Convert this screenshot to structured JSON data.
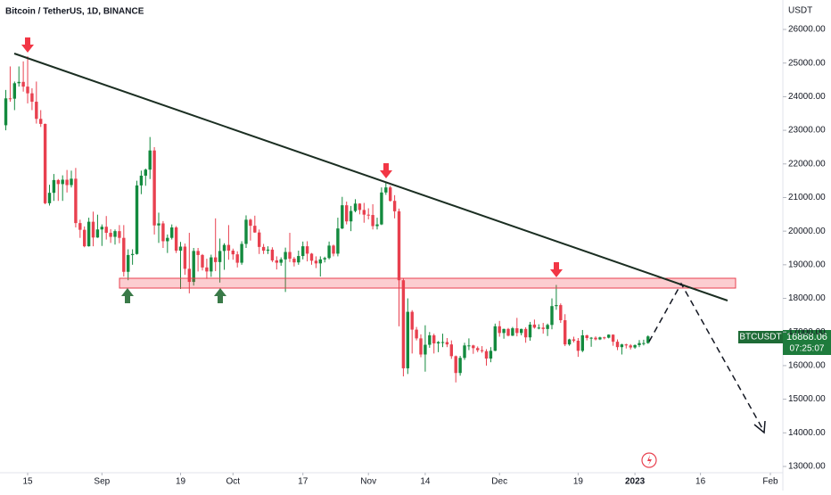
{
  "chart_data": {
    "type": "candlestick",
    "title": "Bitcoin / TetherUS, 1D, BINANCE",
    "y_axis_label": "USDT",
    "symbol": "BTCUSDT",
    "countdown": "07:25:07",
    "up_color": "#138a3e",
    "down_color": "#e8404f",
    "grid": false,
    "xlim": [
      -6.33,
      172.45
    ],
    "xticks": [
      {
        "value": 0,
        "label": "15"
      },
      {
        "value": 17,
        "label": "Sep"
      },
      {
        "value": 35,
        "label": "19"
      },
      {
        "value": 47,
        "label": "Oct"
      },
      {
        "value": 63,
        "label": "17"
      },
      {
        "value": 78,
        "label": "Nov"
      },
      {
        "value": 91,
        "label": "14"
      },
      {
        "value": 108,
        "label": "Dec"
      },
      {
        "value": 126,
        "label": "19"
      },
      {
        "value": 139,
        "label": "2023"
      },
      {
        "value": 154,
        "label": "16"
      },
      {
        "value": 170,
        "label": "Feb"
      }
    ],
    "ylim": [
      12814,
      26876
    ],
    "yticks": [
      {
        "value": 13000,
        "label": "13000.00"
      },
      {
        "value": 14000,
        "label": "14000.00"
      },
      {
        "value": 15000,
        "label": "15000.00"
      },
      {
        "value": 16000,
        "label": "16000.00"
      },
      {
        "value": 17000,
        "label": "17000.00"
      },
      {
        "value": 18000,
        "label": "18000.00"
      },
      {
        "value": 19000,
        "label": "19000.00"
      },
      {
        "value": 20000,
        "label": "20000.00"
      },
      {
        "value": 21000,
        "label": "21000.00"
      },
      {
        "value": 22000,
        "label": "22000.00"
      },
      {
        "value": 23000,
        "label": "23000.00"
      },
      {
        "value": 24000,
        "label": "24000.00"
      },
      {
        "value": 25000,
        "label": "25000.00"
      },
      {
        "value": 26000,
        "label": "26000.00"
      }
    ],
    "x": [
      -5,
      -4,
      -3,
      -2,
      -1,
      0,
      1,
      2,
      3,
      4,
      5,
      6,
      7,
      8,
      9,
      10,
      11,
      12,
      13,
      14,
      15,
      16,
      17,
      18,
      19,
      20,
      21,
      22,
      23,
      24,
      25,
      26,
      27,
      28,
      29,
      30,
      31,
      32,
      33,
      34,
      35,
      36,
      37,
      38,
      39,
      40,
      41,
      42,
      43,
      44,
      45,
      46,
      47,
      48,
      49,
      50,
      51,
      52,
      53,
      54,
      55,
      56,
      57,
      58,
      59,
      60,
      61,
      62,
      63,
      64,
      65,
      66,
      67,
      68,
      69,
      70,
      71,
      72,
      73,
      74,
      75,
      76,
      77,
      78,
      79,
      80,
      81,
      82,
      83,
      84,
      85,
      86,
      87,
      88,
      89,
      90,
      91,
      92,
      93,
      94,
      95,
      96,
      97,
      98,
      99,
      100,
      101,
      102,
      103,
      104,
      105,
      106,
      107,
      108,
      109,
      110,
      111,
      112,
      113,
      114,
      115,
      116,
      117,
      118,
      119,
      120,
      121,
      122,
      123,
      124,
      125,
      126,
      127,
      128,
      129,
      130,
      131,
      132,
      133,
      134,
      135,
      136,
      137,
      138,
      139,
      140,
      141,
      142
    ],
    "candles": [
      [
        23150,
        24200,
        23000,
        23950
      ],
      [
        23950,
        24900,
        23850,
        23940
      ],
      [
        23940,
        24450,
        23600,
        24400
      ],
      [
        24400,
        24900,
        24300,
        24440
      ],
      [
        24440,
        25050,
        24150,
        24300
      ],
      [
        24300,
        25200,
        23800,
        24100
      ],
      [
        24100,
        24250,
        23600,
        23850
      ],
      [
        23850,
        24450,
        23200,
        23340
      ],
      [
        23340,
        23600,
        23100,
        23190
      ],
      [
        23190,
        23200,
        20800,
        20830
      ],
      [
        20830,
        21380,
        20760,
        21140
      ],
      [
        21140,
        21700,
        20900,
        21520
      ],
      [
        21520,
        21550,
        20900,
        21400
      ],
      [
        21400,
        21660,
        20900,
        21530
      ],
      [
        21530,
        21820,
        21150,
        21370
      ],
      [
        21370,
        21800,
        21300,
        21560
      ],
      [
        21560,
        21880,
        20110,
        20240
      ],
      [
        20240,
        20340,
        19800,
        20040
      ],
      [
        20040,
        20140,
        19520,
        19550
      ],
      [
        19550,
        20400,
        19540,
        20280
      ],
      [
        20280,
        20580,
        19550,
        19810
      ],
      [
        19810,
        20490,
        19800,
        20050
      ],
      [
        20050,
        20200,
        19560,
        20130
      ],
      [
        20130,
        20450,
        19750,
        19950
      ],
      [
        19950,
        20060,
        19650,
        19830
      ],
      [
        19830,
        20050,
        19600,
        20000
      ],
      [
        20000,
        20180,
        19640,
        19800
      ],
      [
        19800,
        20180,
        18650,
        18790
      ],
      [
        18790,
        19460,
        18540,
        19290
      ],
      [
        19290,
        19460,
        19000,
        19320
      ],
      [
        19320,
        21500,
        19300,
        21360
      ],
      [
        21360,
        21800,
        21100,
        21650
      ],
      [
        21650,
        21860,
        21350,
        21830
      ],
      [
        21830,
        22800,
        21550,
        22400
      ],
      [
        22400,
        22500,
        19900,
        20170
      ],
      [
        20170,
        20550,
        19650,
        20230
      ],
      [
        20230,
        20300,
        19500,
        19700
      ],
      [
        19700,
        19900,
        19350,
        19800
      ],
      [
        19800,
        20200,
        19750,
        20110
      ],
      [
        20110,
        20150,
        19350,
        19420
      ],
      [
        19420,
        19680,
        18280,
        19540
      ],
      [
        19540,
        19630,
        18700,
        18880
      ],
      [
        18880,
        19950,
        18150,
        18490
      ],
      [
        18490,
        19500,
        18380,
        19410
      ],
      [
        19410,
        19500,
        18800,
        19290
      ],
      [
        19290,
        19320,
        18830,
        18920
      ],
      [
        18920,
        19180,
        18580,
        18800
      ],
      [
        18800,
        19300,
        18640,
        19220
      ],
      [
        19220,
        20380,
        18810,
        19080
      ],
      [
        19080,
        19780,
        18470,
        19410
      ],
      [
        19410,
        19640,
        18850,
        19590
      ],
      [
        19590,
        20180,
        19150,
        19420
      ],
      [
        19420,
        19480,
        19150,
        19310
      ],
      [
        19310,
        19400,
        18920,
        19060
      ],
      [
        19060,
        19700,
        19000,
        19620
      ],
      [
        19620,
        20470,
        19500,
        20340
      ],
      [
        20340,
        20370,
        19720,
        20160
      ],
      [
        20160,
        20460,
        19950,
        19960
      ],
      [
        19960,
        20050,
        19320,
        19530
      ],
      [
        19530,
        19620,
        19320,
        19420
      ],
      [
        19420,
        19550,
        19320,
        19450
      ],
      [
        19450,
        19520,
        19080,
        19130
      ],
      [
        19130,
        19250,
        18860,
        19060
      ],
      [
        19060,
        19220,
        18970,
        19160
      ],
      [
        19160,
        19510,
        18190,
        19380
      ],
      [
        19380,
        19950,
        19080,
        19180
      ],
      [
        19180,
        19230,
        18950,
        19070
      ],
      [
        19070,
        19420,
        19000,
        19260
      ],
      [
        19260,
        19690,
        19160,
        19550
      ],
      [
        19550,
        19700,
        19100,
        19330
      ],
      [
        19330,
        19350,
        19000,
        19120
      ],
      [
        19120,
        19250,
        18900,
        19040
      ],
      [
        19040,
        19250,
        18650,
        19160
      ],
      [
        19160,
        19240,
        19070,
        19200
      ],
      [
        19200,
        19690,
        19160,
        19570
      ],
      [
        19570,
        19600,
        19250,
        19330
      ],
      [
        19330,
        20400,
        19250,
        20080
      ],
      [
        20080,
        21020,
        20060,
        20770
      ],
      [
        20770,
        20880,
        20200,
        20290
      ],
      [
        20290,
        20750,
        20000,
        20600
      ],
      [
        20600,
        20950,
        20560,
        20820
      ],
      [
        20820,
        20830,
        20500,
        20630
      ],
      [
        20630,
        20840,
        20250,
        20490
      ],
      [
        20490,
        20680,
        20350,
        20480
      ],
      [
        20480,
        20800,
        20050,
        20150
      ],
      [
        20150,
        20400,
        20050,
        20200
      ],
      [
        20200,
        21300,
        20180,
        21150
      ],
      [
        21150,
        21450,
        21080,
        21300
      ],
      [
        21300,
        21350,
        20880,
        20900
      ],
      [
        20900,
        21070,
        20380,
        20590
      ],
      [
        20590,
        20670,
        17170,
        18540
      ],
      [
        18540,
        18600,
        15680,
        15920
      ],
      [
        15920,
        18000,
        15750,
        17600
      ],
      [
        17600,
        17650,
        16360,
        17070
      ],
      [
        17070,
        17150,
        16750,
        16810
      ],
      [
        16810,
        16930,
        16250,
        16330
      ],
      [
        16330,
        17200,
        15820,
        16620
      ],
      [
        16620,
        17000,
        16530,
        16900
      ],
      [
        16900,
        16950,
        16360,
        16660
      ],
      [
        16660,
        16730,
        16400,
        16700
      ],
      [
        16700,
        16950,
        16550,
        16700
      ],
      [
        16700,
        16820,
        16550,
        16630
      ],
      [
        16630,
        16750,
        16200,
        16280
      ],
      [
        16280,
        16300,
        15500,
        15780
      ],
      [
        15780,
        16290,
        15700,
        16230
      ],
      [
        16230,
        16680,
        16170,
        16600
      ],
      [
        16600,
        16810,
        16460,
        16600
      ],
      [
        16600,
        16620,
        16350,
        16520
      ],
      [
        16520,
        16570,
        16400,
        16460
      ],
      [
        16460,
        16580,
        16380,
        16430
      ],
      [
        16430,
        16490,
        16000,
        16210
      ],
      [
        16210,
        16550,
        16100,
        16440
      ],
      [
        16440,
        17250,
        16430,
        17170
      ],
      [
        17170,
        17330,
        16860,
        16970
      ],
      [
        16970,
        17100,
        16800,
        17090
      ],
      [
        17090,
        17120,
        16870,
        16890
      ],
      [
        16890,
        17150,
        16880,
        17110
      ],
      [
        17110,
        17420,
        16870,
        16970
      ],
      [
        16970,
        17100,
        16900,
        17090
      ],
      [
        17090,
        17140,
        16680,
        16840
      ],
      [
        16840,
        17300,
        16740,
        17220
      ],
      [
        17220,
        17370,
        17100,
        17130
      ],
      [
        17130,
        17230,
        17080,
        17130
      ],
      [
        17130,
        17270,
        16950,
        17090
      ],
      [
        17090,
        17250,
        16880,
        17210
      ],
      [
        17210,
        18000,
        17080,
        17770
      ],
      [
        17770,
        18400,
        17660,
        17800
      ],
      [
        17800,
        17850,
        17270,
        17350
      ],
      [
        17350,
        17530,
        16580,
        16630
      ],
      [
        16630,
        16800,
        16590,
        16780
      ],
      [
        16780,
        16860,
        16690,
        16740
      ],
      [
        16740,
        16820,
        16260,
        16440
      ],
      [
        16440,
        17060,
        16400,
        16900
      ],
      [
        16900,
        16920,
        16750,
        16820
      ],
      [
        16820,
        16850,
        16560,
        16830
      ],
      [
        16830,
        16870,
        16750,
        16780
      ],
      [
        16780,
        16860,
        16760,
        16840
      ],
      [
        16840,
        16860,
        16780,
        16830
      ],
      [
        16830,
        16930,
        16810,
        16920
      ],
      [
        16920,
        16930,
        16590,
        16710
      ],
      [
        16710,
        16780,
        16460,
        16550
      ],
      [
        16550,
        16650,
        16330,
        16630
      ],
      [
        16630,
        16650,
        16510,
        16600
      ],
      [
        16600,
        16640,
        16480,
        16540
      ],
      [
        16540,
        16630,
        16500,
        16610
      ],
      [
        16610,
        16760,
        16550,
        16670
      ],
      [
        16670,
        16770,
        16600,
        16670
      ],
      [
        16670,
        16900,
        16650,
        16868.06
      ]
    ]
  }
}
